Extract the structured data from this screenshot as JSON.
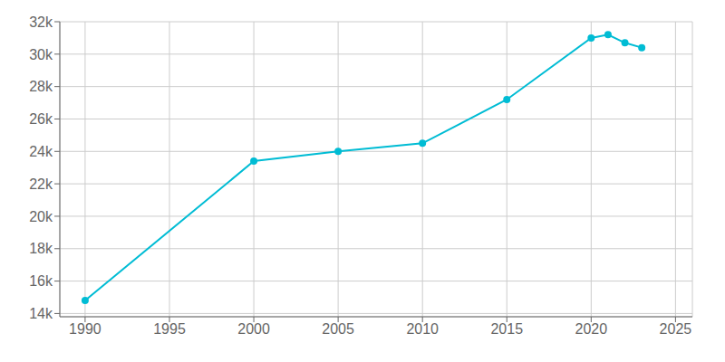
{
  "chart_data": {
    "type": "line",
    "x": [
      1990,
      2000,
      2005,
      2010,
      2015,
      2020,
      2021,
      2022,
      2023
    ],
    "values": [
      14800,
      23400,
      24000,
      24500,
      27200,
      31000,
      31200,
      30700,
      30400
    ],
    "color": "#00BCD4",
    "marker": "circle",
    "xlim": [
      1988.5,
      2026
    ],
    "xticks": [
      1990,
      1995,
      2000,
      2005,
      2010,
      2015,
      2020,
      2025
    ],
    "ylim": [
      13800,
      32000
    ],
    "yticks": [
      {
        "value": 14000,
        "label": "14k"
      },
      {
        "value": 16000,
        "label": "16k"
      },
      {
        "value": 18000,
        "label": "18k"
      },
      {
        "value": 20000,
        "label": "20k"
      },
      {
        "value": 22000,
        "label": "22k"
      },
      {
        "value": 24000,
        "label": "24k"
      },
      {
        "value": 26000,
        "label": "26k"
      },
      {
        "value": 28000,
        "label": "28k"
      },
      {
        "value": 30000,
        "label": "30k"
      },
      {
        "value": 32000,
        "label": "32k"
      }
    ],
    "grid": true
  }
}
